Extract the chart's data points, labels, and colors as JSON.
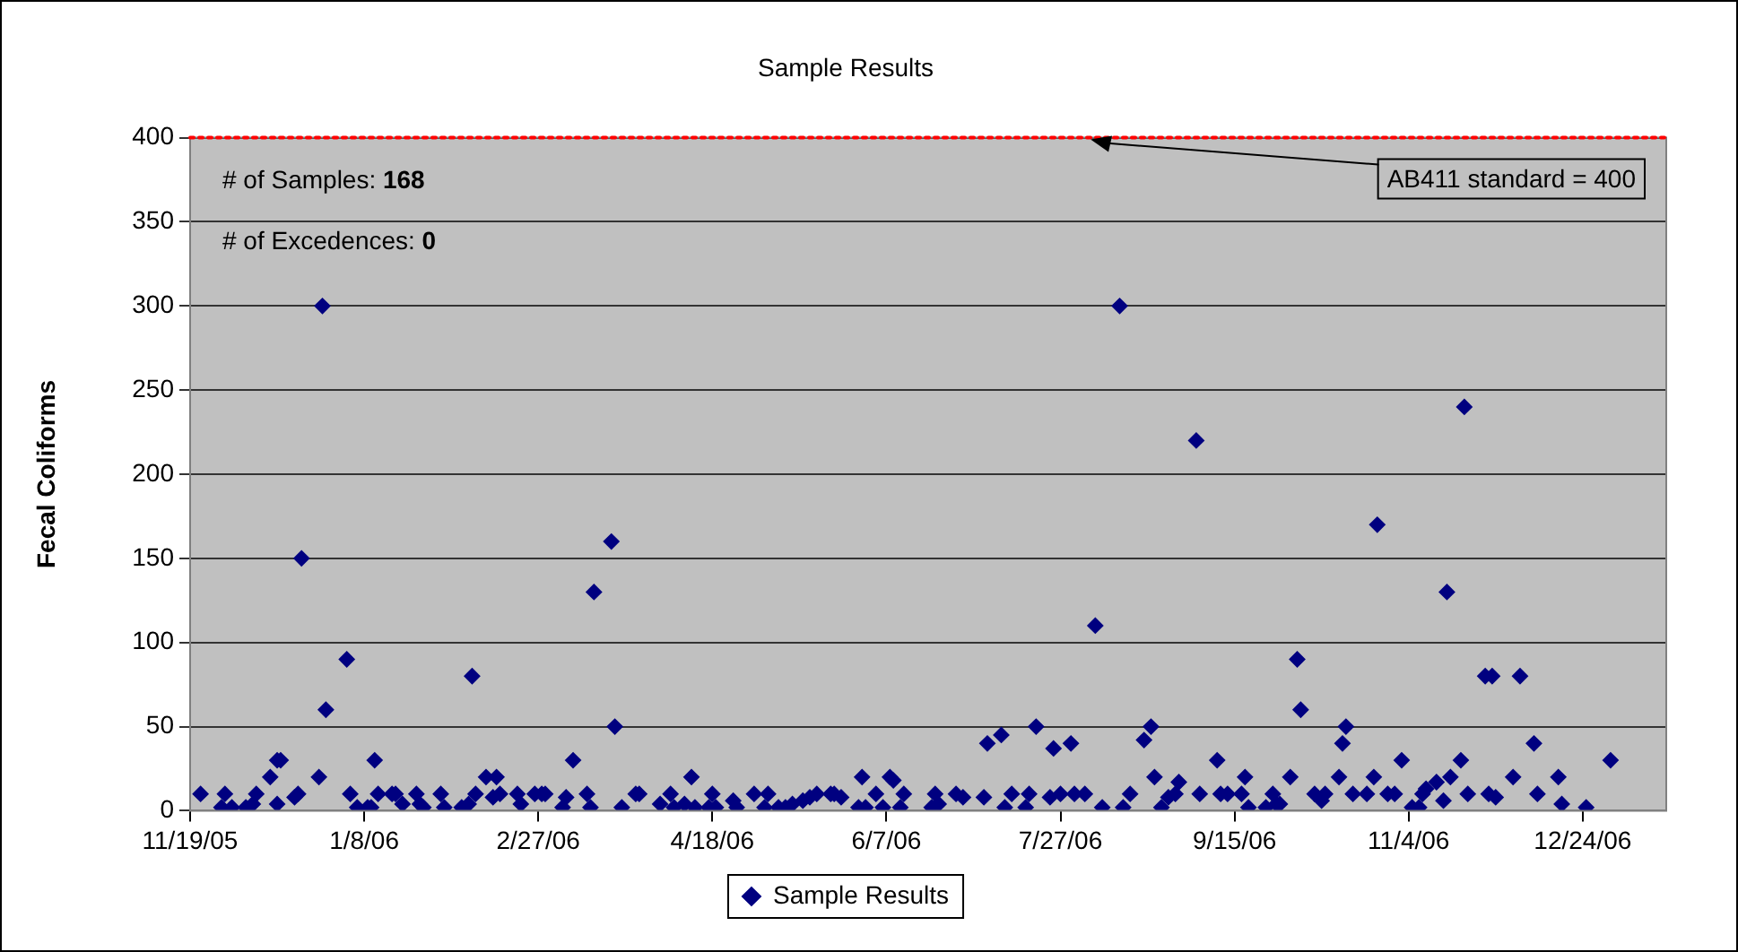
{
  "chart_data": {
    "type": "scatter",
    "title": "Sample Results",
    "ylabel": "Fecal Coliforms",
    "annotations": [
      "# of Samples: 168",
      "# of Excedences: 0"
    ],
    "series": [
      {
        "name": "Sample Results",
        "color": "#000080",
        "x": [
          "2005-11-22",
          "2005-11-29",
          "2005-11-28",
          "2005-12-01",
          "2005-12-05",
          "2005-12-07",
          "2005-12-08",
          "2005-12-12",
          "2005-12-14",
          "2005-12-15",
          "2005-12-14",
          "2005-12-19",
          "2005-12-20",
          "2005-12-21",
          "2005-12-26",
          "2005-12-28",
          "2005-12-27",
          "2006-01-03",
          "2006-01-04",
          "2006-01-06",
          "2006-01-09",
          "2006-01-10",
          "2006-01-11",
          "2006-01-12",
          "2006-01-16",
          "2006-01-17",
          "2006-01-19",
          "2006-01-23",
          "2006-01-24",
          "2006-01-25",
          "2006-01-30",
          "2006-01-31",
          "2006-02-05",
          "2006-02-07",
          "2006-02-08",
          "2006-02-09",
          "2006-02-12",
          "2006-02-15",
          "2006-02-14",
          "2006-02-16",
          "2006-02-21",
          "2006-02-22",
          "2006-02-26",
          "2006-02-28",
          "2006-03-01",
          "2006-03-06",
          "2006-03-07",
          "2006-03-09",
          "2006-03-13",
          "2006-03-14",
          "2006-03-15",
          "2006-03-20",
          "2006-03-21",
          "2006-03-23",
          "2006-03-27",
          "2006-03-28",
          "2006-04-03",
          "2006-04-06",
          "2006-04-07",
          "2006-04-10",
          "2006-04-12",
          "2006-04-13",
          "2006-04-18",
          "2006-04-17",
          "2006-04-19",
          "2006-04-24",
          "2006-04-25",
          "2006-04-30",
          "2006-05-03",
          "2006-05-04",
          "2006-05-07",
          "2006-05-09",
          "2006-05-11",
          "2006-05-14",
          "2006-05-16",
          "2006-05-18",
          "2006-05-22",
          "2006-05-23",
          "2006-05-25",
          "2006-05-30",
          "2006-05-31",
          "2006-06-01",
          "2006-06-04",
          "2006-06-06",
          "2006-06-08",
          "2006-06-09",
          "2006-06-11",
          "2006-06-12",
          "2006-06-20",
          "2006-06-21",
          "2006-06-22",
          "2006-06-27",
          "2006-06-29",
          "2006-07-05",
          "2006-07-06",
          "2006-07-10",
          "2006-07-11",
          "2006-07-13",
          "2006-07-17",
          "2006-07-18",
          "2006-07-20",
          "2006-07-24",
          "2006-07-25",
          "2006-07-27",
          "2006-07-30",
          "2006-07-31",
          "2006-08-03",
          "2006-08-06",
          "2006-08-08",
          "2006-08-13",
          "2006-08-14",
          "2006-08-16",
          "2006-08-20",
          "2006-08-22",
          "2006-08-23",
          "2006-08-25",
          "2006-08-27",
          "2006-08-29",
          "2006-08-30",
          "2006-09-04",
          "2006-09-05",
          "2006-09-10",
          "2006-09-11",
          "2006-09-13",
          "2006-09-17",
          "2006-09-18",
          "2006-09-19",
          "2006-09-24",
          "2006-09-26",
          "2006-09-27",
          "2006-09-28",
          "2006-10-01",
          "2006-10-03",
          "2006-10-04",
          "2006-10-08",
          "2006-10-10",
          "2006-10-11",
          "2006-10-15",
          "2006-10-16",
          "2006-10-17",
          "2006-10-19",
          "2006-10-23",
          "2006-10-25",
          "2006-10-26",
          "2006-10-29",
          "2006-10-31",
          "2006-11-02",
          "2006-11-05",
          "2006-11-07",
          "2006-11-08",
          "2006-11-09",
          "2006-11-12",
          "2006-11-14",
          "2006-11-15",
          "2006-11-16",
          "2006-11-19",
          "2006-11-20",
          "2006-11-21",
          "2006-11-26",
          "2006-11-28",
          "2006-11-27",
          "2006-11-29",
          "2006-12-06",
          "2006-12-04",
          "2006-12-10",
          "2006-12-11",
          "2006-12-17",
          "2006-12-18",
          "2006-12-25",
          "2007-01-01"
        ],
        "values": [
          10,
          10,
          2,
          2,
          2,
          4,
          10,
          20,
          30,
          30,
          4,
          8,
          10,
          150,
          20,
          60,
          300,
          90,
          10,
          2,
          2,
          2,
          30,
          10,
          10,
          10,
          4,
          10,
          4,
          2,
          10,
          2,
          2,
          4,
          80,
          10,
          20,
          20,
          8,
          10,
          10,
          4,
          10,
          10,
          10,
          2,
          8,
          30,
          10,
          2,
          130,
          160,
          50,
          2,
          10,
          10,
          4,
          10,
          2,
          4,
          20,
          2,
          10,
          2,
          2,
          6,
          2,
          10,
          2,
          10,
          2,
          2,
          4,
          6,
          8,
          10,
          10,
          10,
          8,
          2,
          20,
          2,
          10,
          2,
          20,
          18,
          2,
          10,
          2,
          10,
          4,
          10,
          8,
          8,
          40,
          45,
          2,
          10,
          2,
          10,
          50,
          8,
          37,
          10,
          40,
          10,
          10,
          110,
          2,
          300,
          2,
          10,
          42,
          50,
          20,
          2,
          8,
          10,
          17,
          220,
          10,
          30,
          10,
          10,
          10,
          20,
          2,
          2,
          10,
          4,
          4,
          20,
          90,
          60,
          10,
          6,
          10,
          20,
          40,
          50,
          10,
          10,
          20,
          170,
          10,
          10,
          30,
          2,
          2,
          10,
          13,
          17,
          6,
          130,
          20,
          30,
          240,
          10,
          80,
          80,
          10,
          8,
          80,
          20,
          40,
          10,
          20,
          4,
          2,
          30
        ]
      }
    ],
    "xlim": [
      "2005-11-19",
      "2007-01-17"
    ],
    "xticks": [
      {
        "value": "2005-11-19",
        "label": "11/19/05"
      },
      {
        "value": "2006-01-08",
        "label": "1/8/06"
      },
      {
        "value": "2006-02-27",
        "label": "2/27/06"
      },
      {
        "value": "2006-04-18",
        "label": "4/18/06"
      },
      {
        "value": "2006-06-07",
        "label": "6/7/06"
      },
      {
        "value": "2006-07-27",
        "label": "7/27/06"
      },
      {
        "value": "2006-09-15",
        "label": "9/15/06"
      },
      {
        "value": "2006-11-04",
        "label": "11/4/06"
      },
      {
        "value": "2006-12-24",
        "label": "12/24/06"
      }
    ],
    "ylim": [
      0,
      400
    ],
    "yticks": [
      0,
      50,
      100,
      150,
      200,
      250,
      300,
      350,
      400
    ],
    "ref_lines": [
      {
        "axis": "y",
        "value": 400,
        "label": "AB411 standard = 400",
        "color": "#ff0000",
        "line_style": "dotted"
      }
    ],
    "grid": "y",
    "legend": "bottom",
    "marker": "diamond"
  }
}
